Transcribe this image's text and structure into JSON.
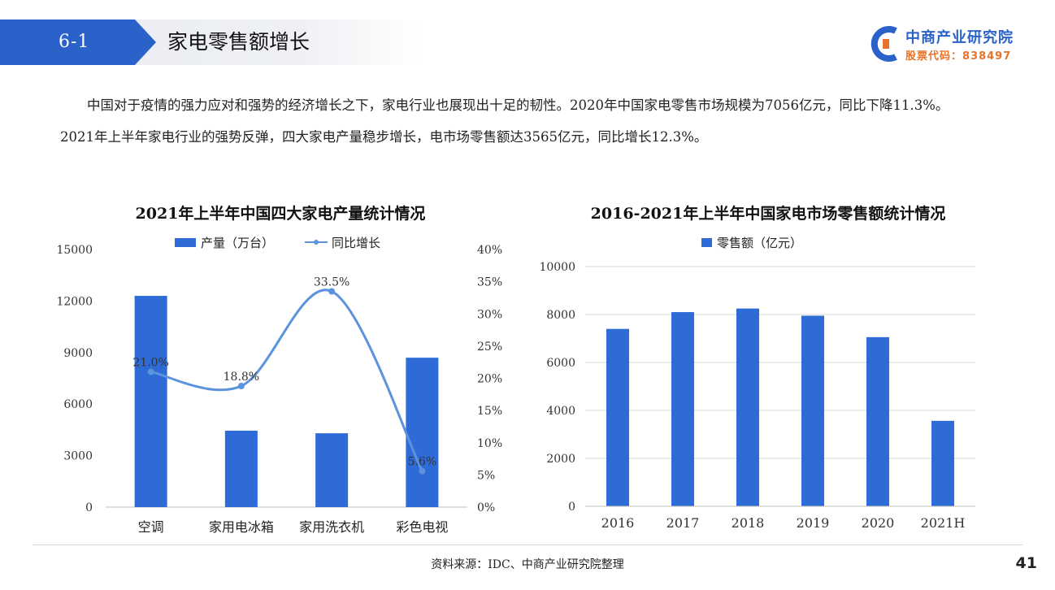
{
  "header": {
    "section_number": "6-1",
    "title": "家电零售额增长",
    "logo_name": "中商产业研究院",
    "logo_code": "股票代码：838497"
  },
  "intro": {
    "paragraph": "中国对于疫情的强力应对和强势的经济增长之下，家电行业也展现出十足的韧性。2020年中国家电零售市场规模为7056亿元，同比下降11.3%。2021年上半年家电行业的强势反弹，四大家电产量稳步增长，电市场零售额达3565亿元，同比增长12.3%。"
  },
  "chart_data": [
    {
      "type": "bar",
      "title": "2021年上半年中国四大家电产量统计情况",
      "categories": [
        "空调",
        "家用电冰箱",
        "家用洗衣机",
        "彩色电视"
      ],
      "series": [
        {
          "name": "产量（万台）",
          "type": "bar",
          "axis": "left",
          "values": [
            12300,
            4450,
            4300,
            8700
          ]
        },
        {
          "name": "同比增长",
          "type": "line",
          "smooth": true,
          "axis": "right",
          "values": [
            21.0,
            18.8,
            33.5,
            5.6
          ],
          "labels": [
            "21.0%",
            "18.8%",
            "33.5%",
            "5.6%"
          ]
        }
      ],
      "y_left": {
        "min": 0,
        "max": 15000,
        "ticks": [
          0,
          3000,
          6000,
          9000,
          12000,
          15000
        ]
      },
      "y_right": {
        "min": 0,
        "max": 40,
        "ticks": [
          "0%",
          "5%",
          "10%",
          "15%",
          "20%",
          "25%",
          "30%",
          "35%",
          "40%"
        ]
      },
      "legend": "top-center",
      "colors": {
        "bar": "#2f6bd6",
        "line": "#5b93de"
      }
    },
    {
      "type": "bar",
      "title": "2016-2021年上半年中国家电市场零售额统计情况",
      "categories": [
        "2016",
        "2017",
        "2018",
        "2019",
        "2020",
        "2021H"
      ],
      "series": [
        {
          "name": "零售额（亿元）",
          "values": [
            7400,
            8100,
            8250,
            7950,
            7056,
            3565
          ]
        }
      ],
      "ylim": [
        0,
        10000
      ],
      "y_ticks": [
        0,
        2000,
        4000,
        6000,
        8000,
        10000
      ],
      "grid": true,
      "legend": "top-center",
      "colors": {
        "bar": "#2f6bd6",
        "grid": "#d9d9d9"
      }
    }
  ],
  "footer": {
    "source": "资料来源：IDC、中商产业研究院整理",
    "page_number": "41"
  }
}
